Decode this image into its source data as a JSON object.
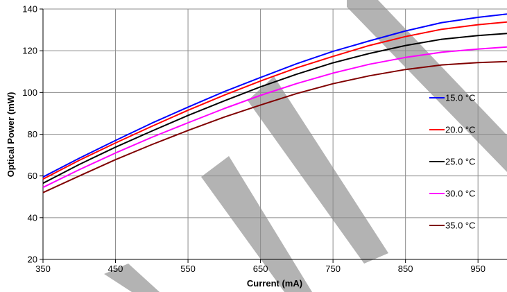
{
  "chart_data": {
    "type": "line",
    "title": "",
    "xlabel": "Current (mA)",
    "ylabel": "Optical Power (mW)",
    "xlim": [
      350,
      990
    ],
    "ylim": [
      20,
      140
    ],
    "x_ticks": [
      350,
      450,
      550,
      650,
      750,
      850,
      950
    ],
    "y_ticks": [
      20,
      40,
      60,
      80,
      100,
      120,
      140
    ],
    "grid": "both",
    "legend_position": "right",
    "watermark": "SAMPLE",
    "x": [
      350,
      400,
      450,
      500,
      550,
      600,
      650,
      700,
      750,
      800,
      850,
      900,
      950,
      990
    ],
    "series": [
      {
        "name": "15.0 °C",
        "color": "#0000ff",
        "values": [
          59.5,
          68.5,
          77,
          85.3,
          93,
          100.4,
          107.2,
          113.8,
          119.7,
          124.7,
          129.5,
          133.5,
          136,
          137.6
        ]
      },
      {
        "name": "20.0 °C",
        "color": "#ff0000",
        "values": [
          58.5,
          67.5,
          75.8,
          83.8,
          91.5,
          98.7,
          105.5,
          111.8,
          117.3,
          122.5,
          126.8,
          130.3,
          132.5,
          133.8
        ]
      },
      {
        "name": "25.0 °C",
        "color": "#000000",
        "values": [
          56.5,
          65.5,
          73.8,
          81.5,
          89,
          96,
          102.7,
          108.8,
          114.2,
          118.7,
          122.5,
          125.5,
          127.3,
          128.3
        ]
      },
      {
        "name": "30.0 °C",
        "color": "#ff00ff",
        "values": [
          54.5,
          63,
          71,
          78.5,
          85.5,
          92.3,
          98.6,
          104.3,
          109.3,
          113.5,
          116.8,
          119.3,
          120.8,
          121.8
        ]
      },
      {
        "name": "35.0 °C",
        "color": "#800000",
        "values": [
          52,
          60,
          67.8,
          75,
          81.8,
          88.2,
          94,
          99.5,
          104.2,
          108,
          111,
          113.2,
          114.3,
          114.8
        ]
      }
    ]
  }
}
